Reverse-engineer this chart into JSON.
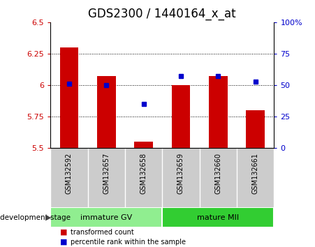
{
  "title": "GDS2300 / 1440164_x_at",
  "categories": [
    "GSM132592",
    "GSM132657",
    "GSM132658",
    "GSM132659",
    "GSM132660",
    "GSM132661"
  ],
  "red_bar_tops": [
    6.3,
    6.07,
    5.55,
    6.0,
    6.07,
    5.8
  ],
  "red_bar_base": 5.5,
  "blue_percentile": [
    51,
    50,
    35,
    57,
    57,
    53
  ],
  "ylim_left": [
    5.5,
    6.5
  ],
  "ylim_right": [
    0,
    100
  ],
  "yticks_left": [
    5.5,
    5.75,
    6.0,
    6.25,
    6.5
  ],
  "yticks_right": [
    0,
    25,
    50,
    75,
    100
  ],
  "ytick_labels_left": [
    "5.5",
    "5.75",
    "6",
    "6.25",
    "6.5"
  ],
  "ytick_labels_right": [
    "0",
    "25",
    "50",
    "75",
    "100%"
  ],
  "groups": [
    {
      "label": "immature GV",
      "indices": [
        0,
        1,
        2
      ],
      "color": "#90ee90"
    },
    {
      "label": "mature MII",
      "indices": [
        3,
        4,
        5
      ],
      "color": "#32cd32"
    }
  ],
  "group_label_prefix": "development stage",
  "legend_items": [
    {
      "label": "transformed count",
      "color": "#cc0000"
    },
    {
      "label": "percentile rank within the sample",
      "color": "#0000cc"
    }
  ],
  "bar_color": "#cc0000",
  "dot_color": "#0000cc",
  "bar_width": 0.5,
  "tick_label_color_left": "#cc0000",
  "tick_label_color_right": "#0000cc",
  "xlabel_area_bg": "#cccccc",
  "title_fontsize": 12,
  "axis_fontsize": 8,
  "cat_fontsize": 7
}
